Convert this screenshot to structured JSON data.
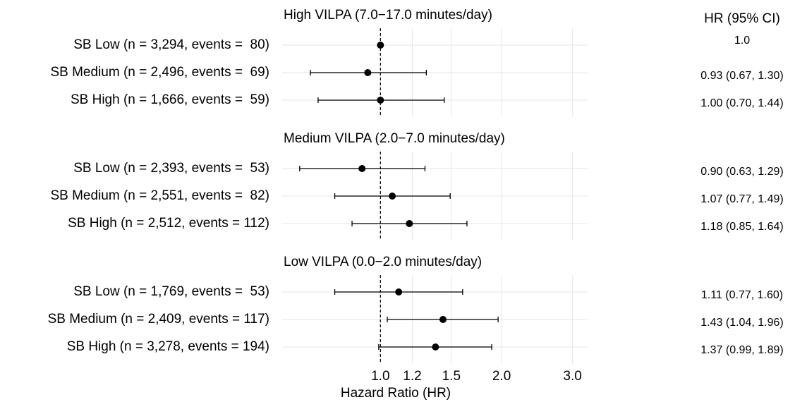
{
  "chart_data": {
    "type": "forest",
    "xlabel": "Hazard Ratio (HR)",
    "column_header": "HR (95% CI)",
    "log_x": true,
    "grid": true,
    "reference": 1,
    "color": "#000000",
    "xlim": [
      0.57,
      3.27
    ],
    "xticks": [
      {
        "value": 1,
        "label": "1.0"
      },
      1.2,
      1.5,
      {
        "value": 2,
        "label": "2.0"
      },
      {
        "value": 3,
        "label": "3.0"
      }
    ],
    "panels": [
      {
        "title": "High VILPA (7.0−17.0 minutes/day)",
        "categories": [
          "SB Low (n = 3,294, events =  80)",
          "SB Medium (n = 2,496, events =  69)",
          "SB High (n = 1,666, events =  59)"
        ],
        "values": [
          1.0,
          0.93,
          1.0
        ],
        "lower": [
          null,
          0.67,
          0.7
        ],
        "upper": [
          null,
          1.3,
          1.44
        ],
        "value_labels": [
          "1.0",
          "0.93 (0.67, 1.30)",
          "1.00 (0.70, 1.44)"
        ]
      },
      {
        "title": "Medium VILPA (2.0−7.0 minutes/day)",
        "categories": [
          "SB Low (n = 2,393, events =  53)",
          "SB Medium (n = 2,551, events =  82)",
          "SB High (n = 2,512, events = 112)"
        ],
        "values": [
          0.9,
          1.07,
          1.18
        ],
        "lower": [
          0.63,
          0.77,
          0.85
        ],
        "upper": [
          1.29,
          1.49,
          1.64
        ],
        "value_labels": [
          "0.90 (0.63, 1.29)",
          "1.07 (0.77, 1.49)",
          "1.18 (0.85, 1.64)"
        ]
      },
      {
        "title": "Low VILPA (0.0−2.0 minutes/day)",
        "categories": [
          "SB Low (n = 1,769, events =  53)",
          "SB Medium (n = 2,409, events = 117)",
          "SB High (n = 3,278, events = 194)"
        ],
        "values": [
          1.11,
          1.43,
          1.37
        ],
        "lower": [
          0.77,
          1.04,
          0.99
        ],
        "upper": [
          1.6,
          1.96,
          1.89
        ],
        "value_labels": [
          "1.11 (0.77, 1.60)",
          "1.43 (1.04, 1.96)",
          "1.37 (0.99, 1.89)"
        ]
      }
    ]
  }
}
